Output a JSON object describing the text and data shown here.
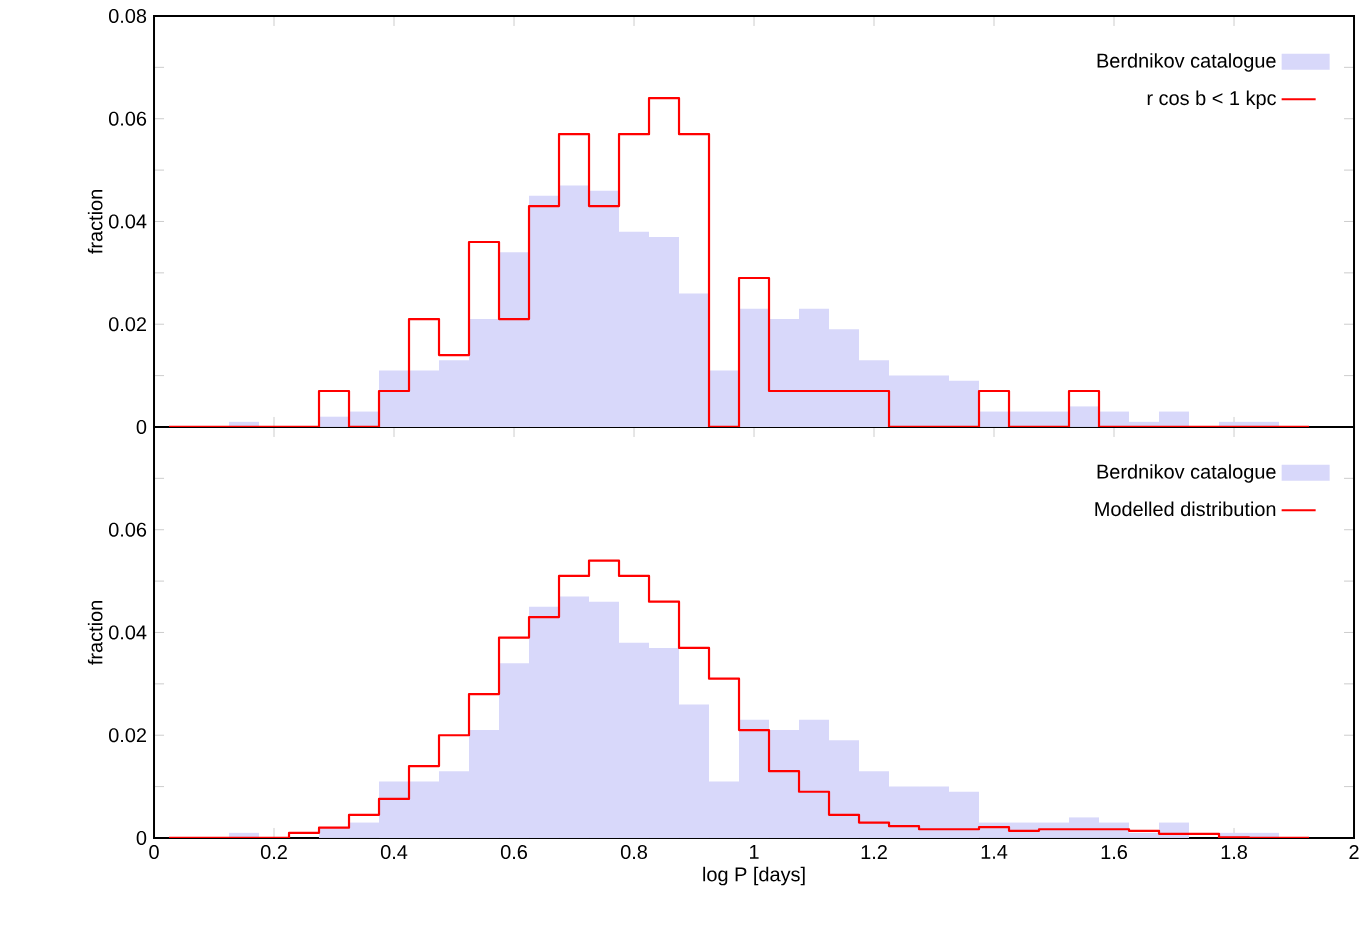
{
  "chart_data": [
    {
      "type": "histogram",
      "ylabel": "fraction",
      "xlim": [
        0,
        2
      ],
      "ylim": [
        0,
        0.08
      ],
      "xticks": [
        0,
        0.2,
        0.4,
        0.6,
        0.8,
        1,
        1.2,
        1.4,
        1.6,
        1.8,
        2
      ],
      "yticks": [
        0,
        {
          "value": 0.01,
          "label": null
        },
        0.02,
        {
          "value": 0.03,
          "label": null
        },
        0.04,
        {
          "value": 0.05,
          "label": null
        },
        0.06,
        {
          "value": 0.07,
          "label": null
        },
        0.08
      ],
      "tick_labels": "y",
      "legend": "top right",
      "bins": [
        0.025,
        0.075,
        0.125,
        0.175,
        0.225,
        0.275,
        0.325,
        0.375,
        0.425,
        0.475,
        0.525,
        0.575,
        0.625,
        0.675,
        0.725,
        0.775,
        0.825,
        0.875,
        0.925,
        0.975,
        1.025,
        1.075,
        1.125,
        1.175,
        1.225,
        1.275,
        1.325,
        1.375,
        1.425,
        1.475,
        1.525,
        1.575,
        1.625,
        1.675,
        1.725,
        1.775,
        1.825,
        1.875,
        1.925,
        1.975
      ],
      "series": [
        {
          "name": "Berdnikov catalogue",
          "color": "#d8d8fa",
          "values": [
            0,
            0,
            0.001,
            0,
            0,
            0.002,
            0.003,
            0.011,
            0.011,
            0.013,
            0.021,
            0.034,
            0.045,
            0.047,
            0.046,
            0.038,
            0.037,
            0.026,
            0.011,
            0.023,
            0.021,
            0.023,
            0.019,
            0.013,
            0.01,
            0.01,
            0.009,
            0.003,
            0.003,
            0.003,
            0.004,
            0.003,
            0.001,
            0.003,
            0,
            0.001,
            0.001,
            0,
            0
          ]
        },
        {
          "name": "r cos b < 1 kpc",
          "color": "#ff0000",
          "type": "step",
          "x": [
            0.025,
            0.075,
            0.125,
            0.175,
            0.225,
            0.275,
            0.325,
            0.375,
            0.425,
            0.475,
            0.525,
            0.575,
            0.625,
            0.675,
            0.725,
            0.775,
            0.825,
            0.875,
            0.925,
            0.975,
            1.025,
            1.075,
            1.125,
            1.175,
            1.225,
            1.275,
            1.325,
            1.375,
            1.425,
            1.475,
            1.525,
            1.575,
            1.625,
            1.675,
            1.725,
            1.775,
            1.825,
            1.875,
            1.925
          ],
          "values": [
            0,
            0,
            0,
            0,
            0,
            0.007,
            0,
            0.007,
            0.021,
            0.014,
            0.036,
            0.021,
            0.043,
            0.057,
            0.043,
            0.057,
            0.064,
            0.057,
            0,
            0.029,
            0.007,
            0.007,
            0.007,
            0.007,
            0,
            0,
            0,
            0.007,
            0,
            0,
            0.007,
            0,
            0,
            0,
            0,
            0,
            0,
            0,
            0
          ]
        }
      ]
    },
    {
      "type": "histogram",
      "xlabel": "log P [days]",
      "ylabel": "fraction",
      "xlim": [
        0,
        2
      ],
      "ylim": [
        0,
        0.08
      ],
      "xticks": [
        0,
        0.2,
        0.4,
        0.6,
        0.8,
        1,
        1.2,
        1.4,
        1.6,
        1.8,
        2
      ],
      "yticks": [
        0,
        {
          "value": 0.01,
          "label": null
        },
        0.02,
        {
          "value": 0.03,
          "label": null
        },
        0.04,
        {
          "value": 0.05,
          "label": null
        },
        0.06,
        {
          "value": 0.07,
          "label": null
        }
      ],
      "legend": "top right",
      "bins": [
        0.025,
        0.075,
        0.125,
        0.175,
        0.225,
        0.275,
        0.325,
        0.375,
        0.425,
        0.475,
        0.525,
        0.575,
        0.625,
        0.675,
        0.725,
        0.775,
        0.825,
        0.875,
        0.925,
        0.975,
        1.025,
        1.075,
        1.125,
        1.175,
        1.225,
        1.275,
        1.325,
        1.375,
        1.425,
        1.475,
        1.525,
        1.575,
        1.625,
        1.675,
        1.725,
        1.775,
        1.825,
        1.875,
        1.925,
        1.975
      ],
      "series": [
        {
          "name": "Berdnikov catalogue",
          "color": "#d8d8fa",
          "values": [
            0,
            0,
            0.001,
            0,
            0,
            0.002,
            0.003,
            0.011,
            0.011,
            0.013,
            0.021,
            0.034,
            0.045,
            0.047,
            0.046,
            0.038,
            0.037,
            0.026,
            0.011,
            0.023,
            0.021,
            0.023,
            0.019,
            0.013,
            0.01,
            0.01,
            0.009,
            0.003,
            0.003,
            0.003,
            0.004,
            0.003,
            0.001,
            0.003,
            0,
            0.001,
            0.001,
            0,
            0
          ]
        },
        {
          "name": "Modelled distribution",
          "color": "#ff0000",
          "type": "step",
          "x": [
            0.025,
            0.075,
            0.125,
            0.175,
            0.225,
            0.275,
            0.325,
            0.375,
            0.425,
            0.475,
            0.525,
            0.575,
            0.625,
            0.675,
            0.725,
            0.775,
            0.825,
            0.875,
            0.925,
            0.975,
            1.025,
            1.075,
            1.125,
            1.175,
            1.225,
            1.275,
            1.325,
            1.375,
            1.425,
            1.475,
            1.525,
            1.575,
            1.625,
            1.675,
            1.725,
            1.775,
            1.825,
            1.875,
            1.925
          ],
          "values": [
            0,
            0,
            0,
            0,
            0.001,
            0.002,
            0.0045,
            0.0076,
            0.014,
            0.02,
            0.028,
            0.039,
            0.043,
            0.051,
            0.054,
            0.051,
            0.046,
            0.037,
            0.031,
            0.021,
            0.013,
            0.009,
            0.0045,
            0.003,
            0.0023,
            0.0017,
            0.0017,
            0.0021,
            0.0014,
            0.0017,
            0.0017,
            0.0017,
            0.0014,
            0.0008,
            0.0008,
            0.0001,
            0,
            0,
            0
          ]
        }
      ]
    }
  ]
}
